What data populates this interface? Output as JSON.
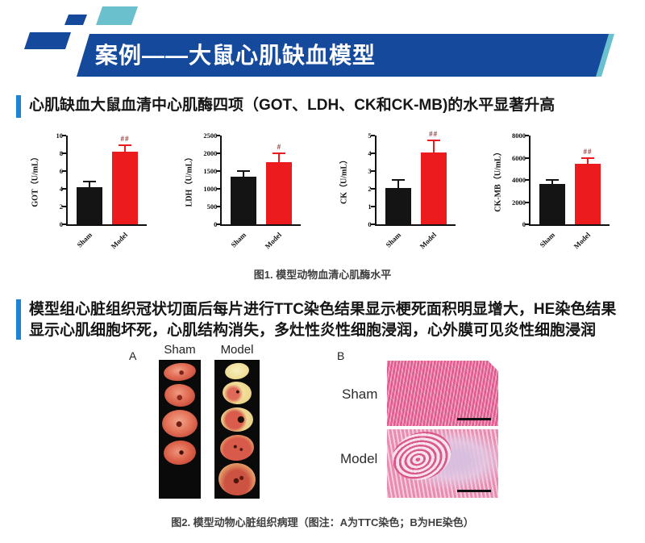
{
  "header": {
    "title": "案例——大鼠心肌缺血模型",
    "banner_color": "#15499c",
    "teal_color": "#6ac0cd",
    "accent_color": "#1b84d6"
  },
  "sections": {
    "serum": {
      "title": "心肌缺血大鼠血清中心肌酶四项（GOT、LDH、CK和CK-MB)的水平显著升高"
    },
    "pathology": {
      "lines": [
        "模型组心脏组织冠状切面后每片进行TTC染色结果显示梗死面积明显增大，HE染色结果",
        "显示心肌细胞坏死，心肌结构消失，多灶性炎性细胞浸润，心外膜可见炎性细胞浸润"
      ]
    }
  },
  "chart_data": [
    {
      "type": "bar",
      "title": "",
      "ylabel": "GOT（U/mL）",
      "xlabel": "",
      "categories": [
        "Sham",
        "Model"
      ],
      "values": [
        4.2,
        8.2
      ],
      "errors": [
        0.6,
        0.7
      ],
      "colors": [
        "#141414",
        "#ec1b1e"
      ],
      "annotations": [
        "",
        "##"
      ],
      "ylim": [
        0,
        10
      ],
      "yticks": [
        0,
        2,
        4,
        6,
        8,
        10
      ],
      "grid": false,
      "legend": "none"
    },
    {
      "type": "bar",
      "title": "",
      "ylabel": "LDH（U/mL）",
      "xlabel": "",
      "categories": [
        "Sham",
        "Model"
      ],
      "values": [
        1350,
        1750
      ],
      "errors": [
        150,
        250
      ],
      "colors": [
        "#141414",
        "#ec1b1e"
      ],
      "annotations": [
        "",
        "#"
      ],
      "ylim": [
        0,
        2500
      ],
      "yticks": [
        0,
        500,
        1000,
        1500,
        2000,
        2500
      ],
      "grid": false,
      "legend": "none"
    },
    {
      "type": "bar",
      "title": "",
      "ylabel": "CK（U/mL）",
      "xlabel": "",
      "categories": [
        "Sham",
        "Model"
      ],
      "values": [
        2.05,
        4.05
      ],
      "errors": [
        0.45,
        0.7
      ],
      "colors": [
        "#141414",
        "#ec1b1e"
      ],
      "annotations": [
        "",
        "##"
      ],
      "ylim": [
        0,
        5
      ],
      "yticks": [
        0,
        1,
        2,
        3,
        4,
        5
      ],
      "grid": false,
      "legend": "none"
    },
    {
      "type": "bar",
      "title": "",
      "ylabel": "CK-MB（U/mL）",
      "xlabel": "",
      "categories": [
        "Sham",
        "Model"
      ],
      "values": [
        3650,
        5450
      ],
      "errors": [
        320,
        500
      ],
      "colors": [
        "#141414",
        "#ec1b1e"
      ],
      "annotations": [
        "",
        "##"
      ],
      "ylim": [
        0,
        8000
      ],
      "yticks": [
        0,
        2000,
        4000,
        6000,
        8000
      ],
      "grid": false,
      "legend": "none"
    }
  ],
  "figure1": {
    "caption": "图1. 模型动物血清心肌酶水平"
  },
  "figure2": {
    "caption": "图2. 模型动物心脏组织病理（图注：A为TTC染色；B为HE染色）",
    "panel_a": {
      "label": "A",
      "columns": [
        "Sham",
        "Model"
      ]
    },
    "panel_b": {
      "label": "B",
      "rows": [
        "Sham",
        "Model"
      ]
    }
  }
}
